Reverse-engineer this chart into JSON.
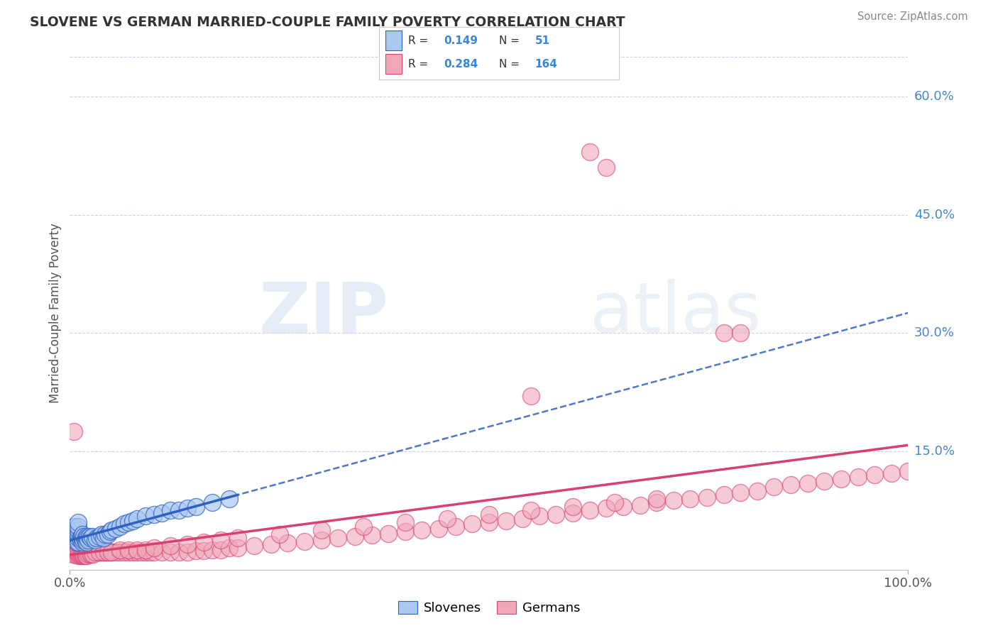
{
  "title": "SLOVENE VS GERMAN MARRIED-COUPLE FAMILY POVERTY CORRELATION CHART",
  "source": "Source: ZipAtlas.com",
  "ylabel": "Married-Couple Family Poverty",
  "xlim": [
    0,
    1.0
  ],
  "ylim": [
    0,
    0.65
  ],
  "ytick_labels": [
    "15.0%",
    "30.0%",
    "45.0%",
    "60.0%"
  ],
  "ytick_values": [
    0.15,
    0.3,
    0.45,
    0.6
  ],
  "legend_label1": "Slovenes",
  "legend_label2": "Germans",
  "R1": "0.149",
  "N1": "51",
  "R2": "0.284",
  "N2": "164",
  "color_slovene": "#aac8f0",
  "color_german": "#f0a8b8",
  "color_line_slovene": "#3060c0",
  "color_line_german": "#d84070",
  "watermark_zip": "ZIP",
  "watermark_atlas": "atlas",
  "background_color": "#ffffff",
  "grid_color": "#c8d4e8",
  "slovene_x": [
    0.005,
    0.007,
    0.008,
    0.009,
    0.01,
    0.01,
    0.01,
    0.01,
    0.01,
    0.01,
    0.012,
    0.013,
    0.014,
    0.015,
    0.015,
    0.015,
    0.016,
    0.017,
    0.018,
    0.019,
    0.02,
    0.02,
    0.021,
    0.022,
    0.023,
    0.025,
    0.027,
    0.03,
    0.032,
    0.035,
    0.038,
    0.04,
    0.042,
    0.045,
    0.048,
    0.05,
    0.055,
    0.06,
    0.065,
    0.07,
    0.075,
    0.08,
    0.09,
    0.1,
    0.11,
    0.12,
    0.13,
    0.14,
    0.15,
    0.17,
    0.19
  ],
  "slovene_y": [
    0.055,
    0.04,
    0.035,
    0.045,
    0.035,
    0.04,
    0.045,
    0.05,
    0.055,
    0.06,
    0.04,
    0.038,
    0.042,
    0.035,
    0.04,
    0.045,
    0.038,
    0.042,
    0.038,
    0.04,
    0.035,
    0.042,
    0.04,
    0.038,
    0.042,
    0.04,
    0.042,
    0.038,
    0.04,
    0.042,
    0.045,
    0.04,
    0.045,
    0.045,
    0.048,
    0.05,
    0.052,
    0.055,
    0.058,
    0.06,
    0.062,
    0.065,
    0.068,
    0.07,
    0.072,
    0.075,
    0.075,
    0.078,
    0.08,
    0.085,
    0.09
  ],
  "german_x": [
    0.003,
    0.004,
    0.005,
    0.005,
    0.005,
    0.006,
    0.006,
    0.007,
    0.007,
    0.008,
    0.008,
    0.008,
    0.009,
    0.009,
    0.01,
    0.01,
    0.01,
    0.01,
    0.011,
    0.011,
    0.012,
    0.012,
    0.013,
    0.013,
    0.014,
    0.014,
    0.015,
    0.015,
    0.016,
    0.016,
    0.017,
    0.017,
    0.018,
    0.018,
    0.019,
    0.019,
    0.02,
    0.02,
    0.021,
    0.022,
    0.023,
    0.024,
    0.025,
    0.025,
    0.026,
    0.027,
    0.028,
    0.029,
    0.03,
    0.03,
    0.032,
    0.034,
    0.036,
    0.038,
    0.04,
    0.042,
    0.044,
    0.046,
    0.048,
    0.05,
    0.055,
    0.06,
    0.065,
    0.07,
    0.075,
    0.08,
    0.085,
    0.09,
    0.095,
    0.1,
    0.11,
    0.12,
    0.13,
    0.14,
    0.15,
    0.16,
    0.17,
    0.18,
    0.19,
    0.2,
    0.22,
    0.24,
    0.26,
    0.28,
    0.3,
    0.32,
    0.34,
    0.36,
    0.38,
    0.4,
    0.42,
    0.44,
    0.46,
    0.48,
    0.5,
    0.52,
    0.54,
    0.56,
    0.58,
    0.6,
    0.62,
    0.64,
    0.66,
    0.68,
    0.7,
    0.72,
    0.74,
    0.76,
    0.78,
    0.8,
    0.82,
    0.84,
    0.86,
    0.88,
    0.9,
    0.92,
    0.94,
    0.96,
    0.98,
    1.0,
    0.007,
    0.008,
    0.009,
    0.01,
    0.01,
    0.011,
    0.012,
    0.013,
    0.014,
    0.015,
    0.016,
    0.017,
    0.018,
    0.019,
    0.02,
    0.022,
    0.024,
    0.026,
    0.028,
    0.03,
    0.035,
    0.04,
    0.045,
    0.05,
    0.06,
    0.07,
    0.08,
    0.09,
    0.1,
    0.12,
    0.14,
    0.16,
    0.18,
    0.2,
    0.25,
    0.3,
    0.35,
    0.4,
    0.45,
    0.5,
    0.55,
    0.6,
    0.65,
    0.7
  ],
  "german_y": [
    0.02,
    0.025,
    0.03,
    0.025,
    0.035,
    0.025,
    0.03,
    0.025,
    0.028,
    0.022,
    0.028,
    0.032,
    0.025,
    0.03,
    0.022,
    0.025,
    0.028,
    0.032,
    0.024,
    0.028,
    0.022,
    0.026,
    0.024,
    0.028,
    0.022,
    0.026,
    0.022,
    0.026,
    0.022,
    0.026,
    0.022,
    0.026,
    0.022,
    0.025,
    0.022,
    0.025,
    0.022,
    0.025,
    0.022,
    0.024,
    0.022,
    0.024,
    0.022,
    0.025,
    0.022,
    0.024,
    0.022,
    0.024,
    0.022,
    0.025,
    0.022,
    0.022,
    0.022,
    0.022,
    0.022,
    0.022,
    0.022,
    0.022,
    0.022,
    0.022,
    0.022,
    0.022,
    0.022,
    0.022,
    0.022,
    0.022,
    0.022,
    0.022,
    0.022,
    0.022,
    0.022,
    0.022,
    0.022,
    0.022,
    0.024,
    0.024,
    0.025,
    0.025,
    0.028,
    0.028,
    0.03,
    0.032,
    0.034,
    0.036,
    0.038,
    0.04,
    0.042,
    0.044,
    0.046,
    0.048,
    0.05,
    0.052,
    0.055,
    0.058,
    0.06,
    0.062,
    0.065,
    0.068,
    0.07,
    0.072,
    0.075,
    0.078,
    0.08,
    0.082,
    0.085,
    0.088,
    0.09,
    0.092,
    0.095,
    0.098,
    0.1,
    0.105,
    0.108,
    0.11,
    0.112,
    0.115,
    0.118,
    0.12,
    0.122,
    0.125,
    0.019,
    0.035,
    0.022,
    0.018,
    0.035,
    0.02,
    0.018,
    0.02,
    0.018,
    0.02,
    0.018,
    0.018,
    0.018,
    0.018,
    0.018,
    0.02,
    0.02,
    0.02,
    0.02,
    0.022,
    0.022,
    0.022,
    0.022,
    0.022,
    0.025,
    0.025,
    0.025,
    0.025,
    0.028,
    0.03,
    0.032,
    0.035,
    0.038,
    0.04,
    0.045,
    0.05,
    0.055,
    0.06,
    0.065,
    0.07,
    0.075,
    0.08,
    0.085,
    0.09
  ],
  "german_outlier_x": [
    0.005,
    0.62,
    0.64,
    0.55,
    0.78,
    0.8
  ],
  "german_outlier_y": [
    0.175,
    0.53,
    0.51,
    0.22,
    0.3,
    0.3
  ]
}
